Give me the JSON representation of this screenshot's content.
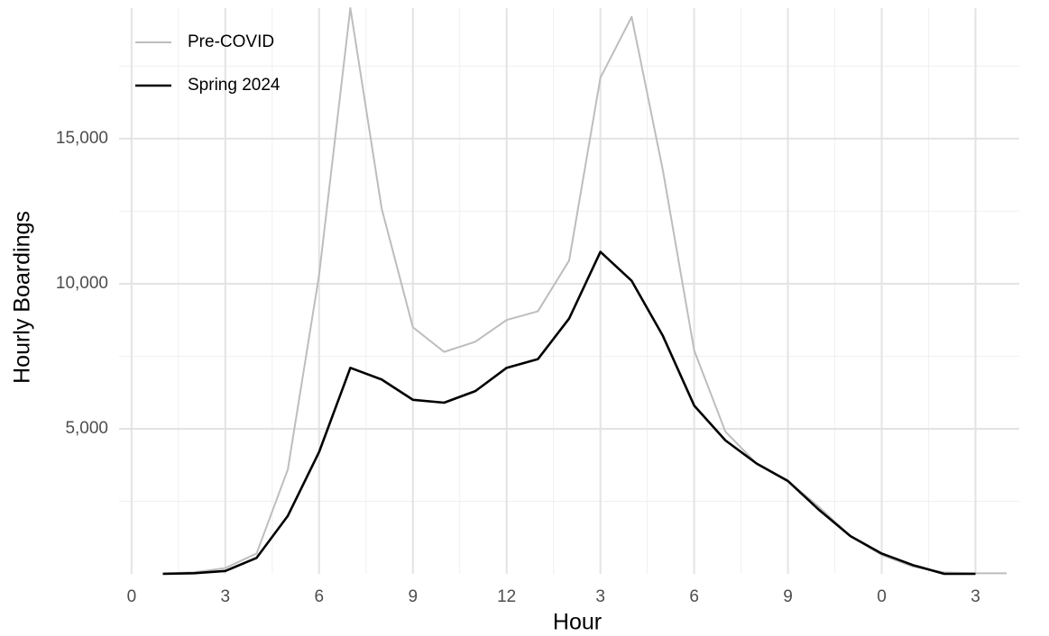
{
  "chart_data": {
    "type": "line",
    "x_label": "Hour",
    "y_label": "Hourly Boardings",
    "x": [
      1,
      2,
      3,
      4,
      5,
      6,
      7,
      8,
      9,
      10,
      11,
      12,
      13,
      14,
      15,
      16,
      17,
      18,
      19,
      20,
      21,
      22,
      23,
      24,
      25,
      26,
      27,
      28
    ],
    "series": [
      {
        "name": "Pre-COVID",
        "color": "#bdbdbd",
        "values": [
          20,
          50,
          200,
          700,
          3600,
          10300,
          19500,
          12600,
          8500,
          7650,
          8000,
          8750,
          9050,
          10800,
          17100,
          19200,
          13900,
          7700,
          4900,
          3800,
          3200,
          2300,
          1300,
          650,
          250,
          50,
          20,
          20
        ]
      },
      {
        "name": "Spring 2024",
        "color": "#000000",
        "values": [
          0,
          20,
          100,
          550,
          2000,
          4200,
          7100,
          6700,
          6000,
          5900,
          6300,
          7100,
          7400,
          8800,
          11100,
          10100,
          8200,
          5800,
          4600,
          3800,
          3200,
          2200,
          1300,
          700,
          300,
          0,
          0,
          null
        ]
      }
    ],
    "xlim": [
      -0.4,
      28.4
    ],
    "xticks": [
      0,
      3,
      6,
      9,
      12,
      {
        "value": 15,
        "label": "3"
      },
      {
        "value": 18,
        "label": "6"
      },
      {
        "value": 21,
        "label": "9"
      },
      {
        "value": 24,
        "label": "0"
      },
      {
        "value": 27,
        "label": "3"
      }
    ],
    "ylim": [
      0,
      19500
    ],
    "yticks": [
      {
        "value": 5000,
        "label": "5,000"
      },
      {
        "value": 10000,
        "label": "10,000"
      },
      {
        "value": 15000,
        "label": "15,000"
      }
    ],
    "grid": true,
    "legend": "top-left"
  }
}
